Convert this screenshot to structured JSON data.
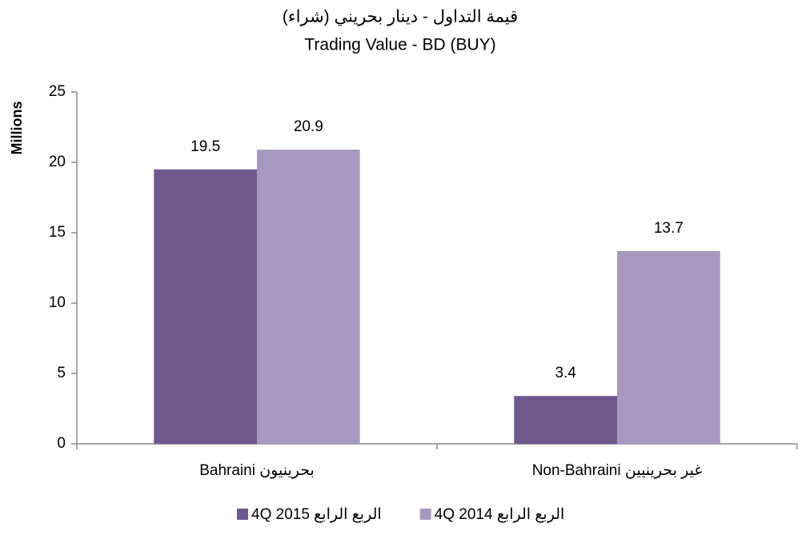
{
  "chart_data": {
    "type": "bar",
    "title": "قيمة التداول - دينار بحريني (شراء)",
    "subtitle": "Trading Value - BD (BUY)",
    "y_label": "Millions",
    "categories": [
      "Bahraini  بحرينيون",
      "Non-Bahraini غير بحرينيين"
    ],
    "series": [
      {
        "name": "4Q 2015 الربع الرابع",
        "color": "#6f588c",
        "values": [
          19.5,
          3.4
        ]
      },
      {
        "name": "4Q 2014 الربع الرابع",
        "color": "#a699c0",
        "values": [
          20.9,
          13.7
        ]
      }
    ],
    "ylim": [
      0,
      25
    ],
    "yticks": [
      0,
      5,
      10,
      15,
      20,
      25
    ],
    "grid": false,
    "legend": "bottom"
  }
}
